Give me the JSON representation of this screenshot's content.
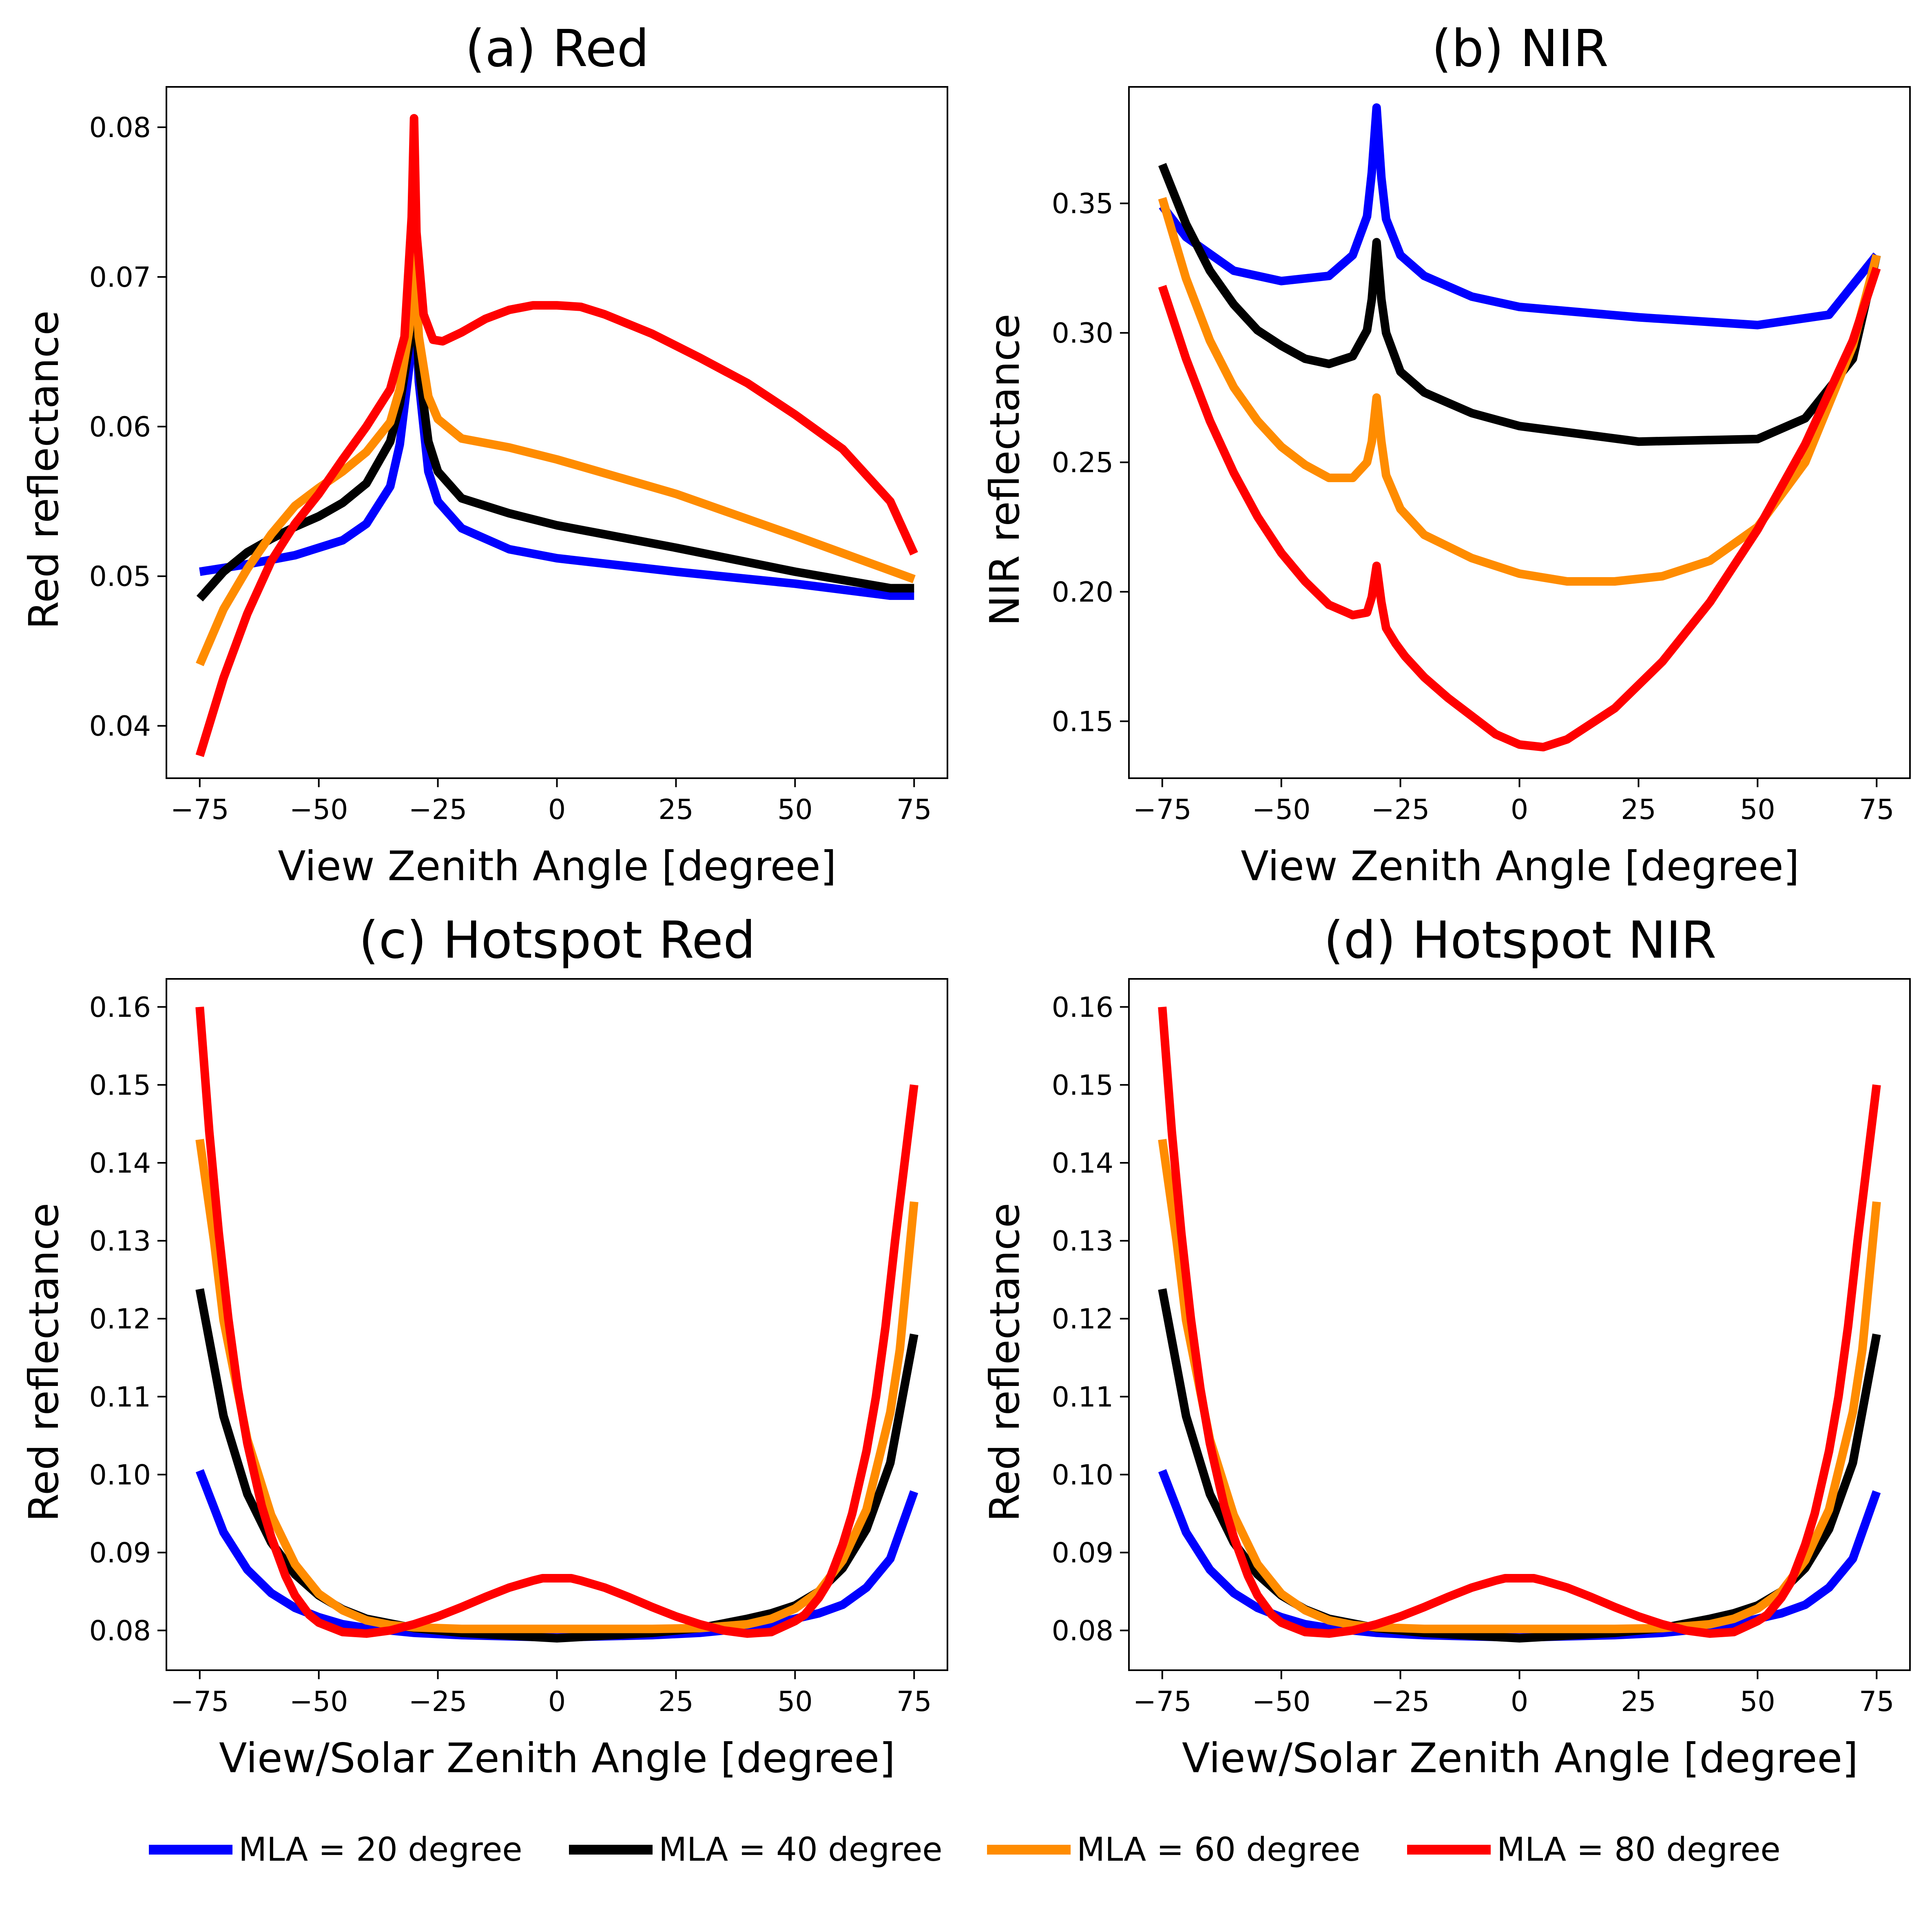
{
  "figure": {
    "series_styles": [
      {
        "name": "MLA = 20 degree",
        "color": "#0000FF"
      },
      {
        "name": "MLA = 40 degree",
        "color": "#000000"
      },
      {
        "name": "MLA = 60 degree",
        "color": "#FF8C00"
      },
      {
        "name": "MLA = 80 degree",
        "color": "#FF0000"
      }
    ]
  },
  "chart_data": [
    {
      "type": "line",
      "title": "(a) Red",
      "xlabel": "View Zenith Angle [degree]",
      "ylabel": "Red reflectance",
      "xlim": [
        -82,
        82
      ],
      "ylim": [
        0.0365,
        0.0827
      ],
      "xticks": [
        -75,
        -50,
        -25,
        0,
        25,
        50,
        75
      ],
      "yticks": [
        0.04,
        0.05,
        0.06,
        0.07,
        0.08
      ],
      "ytick_decimals": 2,
      "grid": false,
      "series": [
        {
          "name": "MLA = 20 degree",
          "x": [
            -75,
            -65,
            -55,
            -45,
            -40,
            -35,
            -33,
            -31,
            -30,
            -29,
            -27,
            -25,
            -20,
            -10,
            0,
            25,
            50,
            70,
            75
          ],
          "y": [
            0.0503,
            0.0508,
            0.0514,
            0.0524,
            0.0535,
            0.056,
            0.0588,
            0.064,
            0.07,
            0.063,
            0.057,
            0.055,
            0.0532,
            0.0518,
            0.0512,
            0.0503,
            0.0495,
            0.0487,
            0.0487
          ]
        },
        {
          "name": "MLA = 40 degree",
          "x": [
            -75,
            -70,
            -65,
            -60,
            -55,
            -50,
            -45,
            -40,
            -35,
            -33,
            -31,
            -30,
            -29,
            -27,
            -25,
            -20,
            -10,
            0,
            10,
            25,
            50,
            70,
            75
          ],
          "y": [
            0.0485,
            0.0503,
            0.0516,
            0.0525,
            0.0533,
            0.054,
            0.0549,
            0.0562,
            0.059,
            0.0615,
            0.0655,
            0.07,
            0.064,
            0.059,
            0.057,
            0.0552,
            0.0542,
            0.0534,
            0.0528,
            0.0519,
            0.0503,
            0.0492,
            0.0492
          ]
        },
        {
          "name": "MLA = 60 degree",
          "x": [
            -75,
            -70,
            -65,
            -60,
            -55,
            -50,
            -45,
            -40,
            -35,
            -33,
            -31,
            -30,
            -29,
            -27,
            -25,
            -20,
            -10,
            0,
            25,
            50,
            75
          ],
          "y": [
            0.0441,
            0.0478,
            0.0505,
            0.0528,
            0.0547,
            0.0559,
            0.057,
            0.0583,
            0.0603,
            0.0625,
            0.0665,
            0.0715,
            0.066,
            0.062,
            0.0605,
            0.0592,
            0.0586,
            0.0578,
            0.0555,
            0.0527,
            0.0498
          ]
        },
        {
          "name": "MLA = 80 degree",
          "x": [
            -75,
            -70,
            -65,
            -60,
            -55,
            -50,
            -45,
            -40,
            -35,
            -32,
            -30.5,
            -30,
            -29.5,
            -28,
            -26,
            -24,
            -20,
            -15,
            -10,
            -5,
            0,
            5,
            10,
            20,
            30,
            40,
            50,
            60,
            70,
            75
          ],
          "y": [
            0.038,
            0.0432,
            0.0475,
            0.051,
            0.0535,
            0.0555,
            0.0578,
            0.06,
            0.0625,
            0.066,
            0.074,
            0.0806,
            0.073,
            0.0675,
            0.0658,
            0.0657,
            0.0663,
            0.0672,
            0.0678,
            0.0681,
            0.0681,
            0.068,
            0.0675,
            0.0662,
            0.0646,
            0.0629,
            0.0608,
            0.0585,
            0.055,
            0.0515
          ]
        }
      ]
    },
    {
      "type": "line",
      "title": "(b) NIR",
      "xlabel": "View Zenith Angle [degree]",
      "ylabel": "NIR reflectance",
      "xlim": [
        -82,
        82
      ],
      "ylim": [
        0.128,
        0.395
      ],
      "xticks": [
        -75,
        -50,
        -25,
        0,
        25,
        50,
        75
      ],
      "yticks": [
        0.15,
        0.2,
        0.25,
        0.3,
        0.35
      ],
      "ytick_decimals": 2,
      "grid": false,
      "series": [
        {
          "name": "MLA = 20 degree",
          "x": [
            -75,
            -70,
            -60,
            -50,
            -40,
            -35,
            -32,
            -31,
            -30,
            -29,
            -28,
            -25,
            -20,
            -10,
            0,
            25,
            50,
            65,
            75
          ],
          "y": [
            0.349,
            0.337,
            0.324,
            0.32,
            0.322,
            0.33,
            0.345,
            0.362,
            0.387,
            0.36,
            0.344,
            0.33,
            0.322,
            0.314,
            0.31,
            0.306,
            0.303,
            0.307,
            0.33
          ]
        },
        {
          "name": "MLA = 40 degree",
          "x": [
            -75,
            -70,
            -65,
            -60,
            -55,
            -50,
            -45,
            -40,
            -35,
            -32,
            -31,
            -30,
            -29,
            -28,
            -25,
            -20,
            -10,
            0,
            25,
            50,
            60,
            70,
            75
          ],
          "y": [
            0.365,
            0.342,
            0.324,
            0.311,
            0.301,
            0.295,
            0.29,
            0.288,
            0.291,
            0.301,
            0.313,
            0.335,
            0.313,
            0.3,
            0.285,
            0.277,
            0.269,
            0.264,
            0.258,
            0.259,
            0.267,
            0.29,
            0.33
          ]
        },
        {
          "name": "MLA = 60 degree",
          "x": [
            -75,
            -70,
            -65,
            -60,
            -55,
            -50,
            -45,
            -40,
            -35,
            -32,
            -31,
            -30,
            -29,
            -28,
            -25,
            -20,
            -10,
            0,
            10,
            20,
            30,
            40,
            50,
            60,
            70,
            75
          ],
          "y": [
            0.352,
            0.321,
            0.297,
            0.279,
            0.266,
            0.256,
            0.249,
            0.244,
            0.244,
            0.25,
            0.258,
            0.275,
            0.258,
            0.245,
            0.232,
            0.222,
            0.213,
            0.207,
            0.204,
            0.204,
            0.206,
            0.212,
            0.225,
            0.25,
            0.295,
            0.33
          ]
        },
        {
          "name": "MLA = 80 degree",
          "x": [
            -75,
            -70,
            -65,
            -60,
            -55,
            -50,
            -45,
            -40,
            -35,
            -32,
            -31,
            -30,
            -29,
            -28,
            -26,
            -24,
            -20,
            -15,
            -10,
            -5,
            0,
            5,
            10,
            20,
            30,
            40,
            50,
            60,
            70,
            75
          ],
          "y": [
            0.318,
            0.29,
            0.266,
            0.246,
            0.229,
            0.215,
            0.204,
            0.195,
            0.191,
            0.192,
            0.198,
            0.21,
            0.196,
            0.186,
            0.18,
            0.175,
            0.167,
            0.159,
            0.152,
            0.145,
            0.141,
            0.14,
            0.143,
            0.155,
            0.173,
            0.196,
            0.224,
            0.257,
            0.297,
            0.325
          ]
        }
      ]
    },
    {
      "type": "line",
      "title": "(c) Hotspot Red",
      "xlabel": "View/Solar Zenith Angle [degree]",
      "ylabel": "Red reflectance",
      "xlim": [
        -82,
        82
      ],
      "ylim": [
        0.0749,
        0.1636
      ],
      "xticks": [
        -75,
        -50,
        -25,
        0,
        25,
        50,
        75
      ],
      "yticks": [
        0.08,
        0.09,
        0.1,
        0.11,
        0.12,
        0.13,
        0.14,
        0.15,
        0.16
      ],
      "ytick_decimals": 2,
      "grid": false,
      "series": [
        {
          "name": "MLA = 20 degree",
          "x": [
            -75,
            -70,
            -65,
            -60,
            -55,
            -50,
            -45,
            -40,
            -30,
            -20,
            0,
            20,
            30,
            40,
            45,
            50,
            55,
            60,
            65,
            70,
            75
          ],
          "y": [
            0.1005,
            0.0926,
            0.0878,
            0.0848,
            0.0829,
            0.0817,
            0.0808,
            0.0803,
            0.0797,
            0.0794,
            0.0791,
            0.0794,
            0.0797,
            0.0803,
            0.0808,
            0.0815,
            0.0822,
            0.0833,
            0.0855,
            0.0892,
            0.0978
          ]
        },
        {
          "name": "MLA = 40 degree",
          "x": [
            -75,
            -70,
            -65,
            -60,
            -55,
            -50,
            -45,
            -40,
            -30,
            -20,
            0,
            20,
            30,
            40,
            45,
            50,
            55,
            60,
            65,
            70,
            75
          ],
          "y": [
            0.1238,
            0.1075,
            0.0975,
            0.0913,
            0.0872,
            0.0845,
            0.0827,
            0.0815,
            0.0803,
            0.0797,
            0.079,
            0.0797,
            0.0803,
            0.0815,
            0.0822,
            0.0832,
            0.085,
            0.088,
            0.093,
            0.1015,
            0.118
          ]
        },
        {
          "name": "MLA = 60 degree",
          "x": [
            -75,
            -72,
            -70,
            -65,
            -60,
            -55,
            -50,
            -45,
            -40,
            -35,
            -30,
            -20,
            0,
            20,
            30,
            40,
            45,
            50,
            55,
            60,
            65,
            70,
            72,
            75
          ],
          "y": [
            0.143,
            0.13,
            0.1198,
            0.1045,
            0.0948,
            0.0885,
            0.0847,
            0.0826,
            0.0813,
            0.0807,
            0.0804,
            0.0802,
            0.0802,
            0.0802,
            0.0803,
            0.0808,
            0.0815,
            0.0828,
            0.085,
            0.089,
            0.0955,
            0.108,
            0.116,
            0.135
          ]
        },
        {
          "name": "MLA = 80 degree",
          "x": [
            -75,
            -73,
            -71,
            -69,
            -67,
            -65,
            -62,
            -60,
            -57,
            -55,
            -52,
            -50,
            -45,
            -40,
            -35,
            -30,
            -25,
            -20,
            -15,
            -10,
            -5,
            -3,
            0,
            3,
            5,
            10,
            15,
            20,
            25,
            30,
            35,
            40,
            45,
            50,
            52,
            55,
            57,
            60,
            62,
            65,
            67,
            69,
            71,
            73,
            75
          ],
          "y": [
            0.16,
            0.144,
            0.131,
            0.12,
            0.111,
            0.104,
            0.096,
            0.092,
            0.087,
            0.0845,
            0.082,
            0.081,
            0.0798,
            0.0796,
            0.08,
            0.0808,
            0.0818,
            0.083,
            0.0843,
            0.0855,
            0.0864,
            0.0867,
            0.0867,
            0.0867,
            0.0864,
            0.0855,
            0.0843,
            0.083,
            0.0818,
            0.0808,
            0.08,
            0.0796,
            0.0798,
            0.0812,
            0.082,
            0.0842,
            0.0862,
            0.091,
            0.095,
            0.103,
            0.11,
            0.119,
            0.13,
            0.14,
            0.15
          ]
        }
      ]
    },
    {
      "type": "line",
      "title": "(d) Hotspot NIR",
      "xlabel": "View/Solar Zenith Angle [degree]",
      "ylabel": "Red reflectance",
      "xlim": [
        -82,
        82
      ],
      "ylim": [
        0.0749,
        0.1636
      ],
      "xticks": [
        -75,
        -50,
        -25,
        0,
        25,
        50,
        75
      ],
      "yticks": [
        0.08,
        0.09,
        0.1,
        0.11,
        0.12,
        0.13,
        0.14,
        0.15,
        0.16
      ],
      "ytick_decimals": 2,
      "grid": false,
      "series": [
        {
          "name": "MLA = 20 degree",
          "x": [
            -75,
            -70,
            -65,
            -60,
            -55,
            -50,
            -45,
            -40,
            -30,
            -20,
            0,
            20,
            30,
            40,
            45,
            50,
            55,
            60,
            65,
            70,
            75
          ],
          "y": [
            0.1005,
            0.0926,
            0.0878,
            0.0848,
            0.0829,
            0.0817,
            0.0808,
            0.0803,
            0.0797,
            0.0794,
            0.0791,
            0.0794,
            0.0797,
            0.0803,
            0.0808,
            0.0815,
            0.0822,
            0.0833,
            0.0855,
            0.0892,
            0.0978
          ]
        },
        {
          "name": "MLA = 40 degree",
          "x": [
            -75,
            -70,
            -65,
            -60,
            -55,
            -50,
            -45,
            -40,
            -30,
            -20,
            0,
            20,
            30,
            40,
            45,
            50,
            55,
            60,
            65,
            70,
            75
          ],
          "y": [
            0.1238,
            0.1075,
            0.0975,
            0.0913,
            0.0872,
            0.0845,
            0.0827,
            0.0815,
            0.0803,
            0.0797,
            0.079,
            0.0797,
            0.0803,
            0.0815,
            0.0822,
            0.0832,
            0.085,
            0.088,
            0.093,
            0.1015,
            0.118
          ]
        },
        {
          "name": "MLA = 60 degree",
          "x": [
            -75,
            -72,
            -70,
            -65,
            -60,
            -55,
            -50,
            -45,
            -40,
            -35,
            -30,
            -20,
            0,
            20,
            30,
            40,
            45,
            50,
            55,
            60,
            65,
            70,
            72,
            75
          ],
          "y": [
            0.143,
            0.13,
            0.1198,
            0.1045,
            0.0948,
            0.0885,
            0.0847,
            0.0826,
            0.0813,
            0.0807,
            0.0804,
            0.0802,
            0.0802,
            0.0802,
            0.0803,
            0.0808,
            0.0815,
            0.0828,
            0.085,
            0.089,
            0.0955,
            0.108,
            0.116,
            0.135
          ]
        },
        {
          "name": "MLA = 80 degree",
          "x": [
            -75,
            -73,
            -71,
            -69,
            -67,
            -65,
            -62,
            -60,
            -57,
            -55,
            -52,
            -50,
            -45,
            -40,
            -35,
            -30,
            -25,
            -20,
            -15,
            -10,
            -5,
            -3,
            0,
            3,
            5,
            10,
            15,
            20,
            25,
            30,
            35,
            40,
            45,
            50,
            52,
            55,
            57,
            60,
            62,
            65,
            67,
            69,
            71,
            73,
            75
          ],
          "y": [
            0.16,
            0.144,
            0.131,
            0.12,
            0.111,
            0.104,
            0.096,
            0.092,
            0.087,
            0.0845,
            0.082,
            0.081,
            0.0798,
            0.0796,
            0.08,
            0.0808,
            0.0818,
            0.083,
            0.0843,
            0.0855,
            0.0864,
            0.0867,
            0.0867,
            0.0867,
            0.0864,
            0.0855,
            0.0843,
            0.083,
            0.0818,
            0.0808,
            0.08,
            0.0796,
            0.0798,
            0.0812,
            0.082,
            0.0842,
            0.0862,
            0.091,
            0.095,
            0.103,
            0.11,
            0.119,
            0.13,
            0.14,
            0.15
          ]
        }
      ]
    }
  ]
}
